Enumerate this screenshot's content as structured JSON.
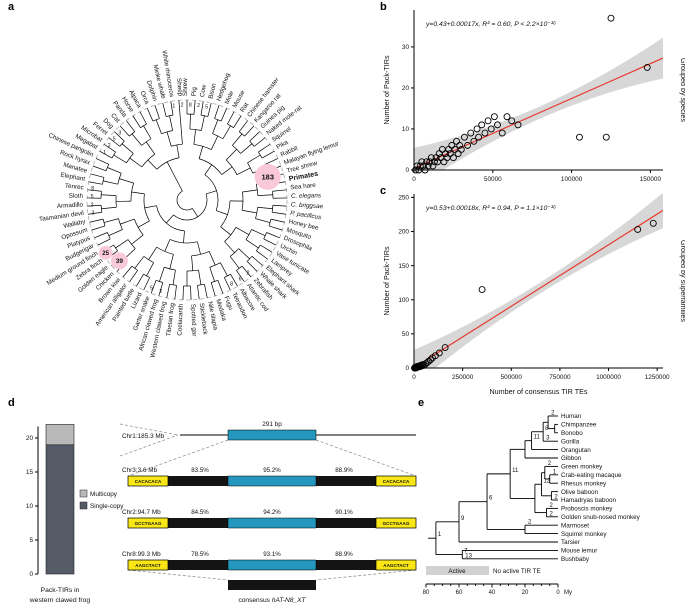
{
  "panels": {
    "a": "a",
    "b": "b",
    "c": "c",
    "d": "d",
    "e": "e"
  },
  "colors": {
    "accent_red": "#e8392e",
    "band_gray": "#d0d0d0",
    "blue_box": "#2597be",
    "yellow_box": "#f8e616",
    "badge_pink": "#f9c9d9",
    "badge_text": "#d6336c",
    "bar_dark": "#565b68",
    "bar_light": "#b9b9b9"
  },
  "panel_a": {
    "species_clockwise_from_top": [
      "Shrew",
      "Pig",
      "Cow",
      "Bison",
      "Hedgehog",
      "Mole",
      "Mouse",
      "Rat",
      "Chinese hamster",
      "Kangaroo rat",
      "Guinea pig",
      "Naked mole-rat",
      "Squirrel",
      "Pika",
      "Rabbit",
      "Malayan flying lemur",
      "Tree shrew",
      "Primates",
      "Sea hare",
      "C. elegans",
      "C. briggsae",
      "P. pacificus",
      "Honey bee",
      "Mosquito",
      "Drosophila",
      "Urchin",
      "Vase tunicate",
      "Lamprey",
      "Elephant shark",
      "Whale shark",
      "Zebrafish",
      "Atlantic cod",
      "Albacore",
      "Tetraodon",
      "Fugu",
      "Medaka",
      "Nile tilapia",
      "Stickleback",
      "Spotted gar",
      "Coelacanth",
      "Tibetan frog",
      "Western clawed frog",
      "African clawed frog",
      "Garter snake",
      "Lizard",
      "Painted turtle",
      "American alligator",
      "Brown kiwi",
      "Chicken",
      "Golden eagle",
      "Zebra finch",
      "Medium ground finch",
      "Budgerigar",
      "Platypus",
      "Opossum",
      "Wallaby",
      "Tasmanian devil",
      "Armadillo",
      "Sloth",
      "Tenrec",
      "Elephant",
      "Manatee",
      "Rock hyrax",
      "Chinese pangolin",
      "Megabat",
      "Microbat",
      "Ferret",
      "Dog",
      "Cat",
      "Panda",
      "Horse",
      "Alpaca",
      "Orca",
      "Dolphin",
      "Minke whale",
      "White rhinoceros",
      "Sheep"
    ],
    "italic_species": [
      "C. elegans",
      "C. briggsae",
      "P. pacificus"
    ],
    "badges": [
      {
        "text": "183",
        "angle": 74,
        "radius": 84,
        "r": 13,
        "font": 7.5
      },
      {
        "text": "39",
        "angle": 228,
        "radius": 91,
        "r": 8.5,
        "font": 6.5
      },
      {
        "text": "25",
        "angle": 237,
        "radius": 97,
        "r": 7,
        "font": 6
      }
    ],
    "small_numbers": [
      {
        "text": "3",
        "angle": 262
      },
      {
        "text": "2",
        "angle": 267
      },
      {
        "text": "5",
        "angle": 272
      },
      {
        "text": "8",
        "angle": 277
      },
      {
        "text": "1",
        "angle": 300
      },
      {
        "text": "2",
        "angle": 305
      },
      {
        "text": "5",
        "angle": 310
      },
      {
        "text": "3",
        "angle": 315
      },
      {
        "text": "1",
        "angle": 352
      },
      {
        "text": "2",
        "angle": 357
      },
      {
        "text": "8",
        "angle": 2
      },
      {
        "text": "2",
        "angle": 7
      },
      {
        "text": "5",
        "angle": 12
      },
      {
        "text": "2",
        "angle": 140
      },
      {
        "text": "6",
        "angle": 146
      },
      {
        "text": "8",
        "angle": 152
      },
      {
        "text": "2",
        "angle": 196
      },
      {
        "text": "5",
        "angle": 202
      }
    ]
  },
  "chart_data": [
    {
      "type": "scatter",
      "name": "pack_tirs_by_species",
      "equation": "y=0.43+0.00017x, R² = 0.60, P < 2.2×10⁻¹⁶",
      "ylabel": "Number of Pack-TIRs",
      "right_label": "Grouped by species",
      "xlim": [
        0,
        158000
      ],
      "ylim": [
        0,
        39
      ],
      "xticks": [
        0,
        50000,
        100000,
        150000
      ],
      "yticks": [
        0,
        10,
        20,
        30
      ],
      "fit": {
        "intercept": 0.43,
        "slope": 0.00017
      },
      "band": {
        "center": 1.5,
        "edge": 5
      },
      "points": [
        [
          1000,
          0
        ],
        [
          2000,
          1
        ],
        [
          3000,
          0
        ],
        [
          4000,
          1
        ],
        [
          5000,
          2
        ],
        [
          6000,
          1
        ],
        [
          7000,
          0
        ],
        [
          8000,
          2
        ],
        [
          9000,
          1
        ],
        [
          10000,
          2
        ],
        [
          11000,
          3
        ],
        [
          12000,
          1
        ],
        [
          13000,
          2
        ],
        [
          14000,
          3
        ],
        [
          15000,
          2
        ],
        [
          16000,
          4
        ],
        [
          17000,
          3
        ],
        [
          18000,
          5
        ],
        [
          19000,
          2
        ],
        [
          20000,
          4
        ],
        [
          21000,
          3
        ],
        [
          22000,
          5
        ],
        [
          23000,
          4
        ],
        [
          24000,
          6
        ],
        [
          25000,
          3
        ],
        [
          26000,
          5
        ],
        [
          27000,
          7
        ],
        [
          28000,
          4
        ],
        [
          29000,
          6
        ],
        [
          30000,
          5
        ],
        [
          32000,
          8
        ],
        [
          34000,
          6
        ],
        [
          36000,
          9
        ],
        [
          38000,
          7
        ],
        [
          40000,
          10
        ],
        [
          41000,
          8
        ],
        [
          43000,
          11
        ],
        [
          45000,
          9
        ],
        [
          47000,
          12
        ],
        [
          49000,
          10
        ],
        [
          51000,
          13
        ],
        [
          53000,
          11
        ],
        [
          56000,
          9
        ],
        [
          59000,
          13
        ],
        [
          62000,
          12
        ],
        [
          66000,
          11
        ],
        [
          105000,
          8
        ],
        [
          122000,
          8
        ],
        [
          125000,
          37
        ],
        [
          148000,
          25
        ]
      ]
    },
    {
      "type": "scatter",
      "name": "pack_tirs_by_superfamilies",
      "equation": "y=0.53+0.00018x, R² = 0.94, P = 1.1×10⁻¹⁶",
      "ylabel": "Number of Pack-TIRs",
      "xlabel": "Number of consensus TIR TEs",
      "right_label": "Grouped by superfamilies",
      "xlim": [
        0,
        1280000
      ],
      "ylim": [
        0,
        255
      ],
      "xticks": [
        0,
        250000,
        500000,
        750000,
        1000000,
        1250000
      ],
      "yticks": [
        0,
        50,
        100,
        150,
        200,
        250
      ],
      "fit": {
        "intercept": 0.53,
        "slope": 0.00018
      },
      "band": {
        "center": 8,
        "edge": 26
      },
      "points": [
        [
          3000,
          0
        ],
        [
          6000,
          1
        ],
        [
          9000,
          0
        ],
        [
          12000,
          1
        ],
        [
          15000,
          2
        ],
        [
          18000,
          1
        ],
        [
          22000,
          2
        ],
        [
          26000,
          3
        ],
        [
          30000,
          2
        ],
        [
          35000,
          4
        ],
        [
          40000,
          3
        ],
        [
          45000,
          5
        ],
        [
          52000,
          4
        ],
        [
          60000,
          6
        ],
        [
          68000,
          8
        ],
        [
          76000,
          10
        ],
        [
          85000,
          12
        ],
        [
          95000,
          15
        ],
        [
          110000,
          18
        ],
        [
          130000,
          22
        ],
        [
          160000,
          30
        ],
        [
          350000,
          115
        ],
        [
          1150000,
          203
        ],
        [
          1230000,
          212
        ]
      ]
    },
    {
      "type": "bar",
      "name": "pack_tirs_western_clawed_frog",
      "yticks": [
        0,
        5,
        10,
        15,
        20
      ],
      "ymax": 22,
      "segments": [
        {
          "label": "Single-copy",
          "value": 19,
          "color": "#565b68"
        },
        {
          "label": "Multicopy",
          "value": 3,
          "color": "#b9b9b9"
        }
      ],
      "legend": [
        {
          "label": "Multicopy",
          "color": "#b9b9b9"
        },
        {
          "label": "Single-copy",
          "color": "#565b68"
        }
      ],
      "xlabel": [
        "Pack-TIRs in",
        "western clawed frog"
      ]
    }
  ],
  "panel_d_genes": {
    "rows": [
      {
        "chr": "Chr1:185.3 Mb",
        "type": "insert",
        "label": "291 bp"
      },
      {
        "chr": "Chr3:3.6 Mb",
        "pcts": [
          "83.5%",
          "95.2%",
          "88.9%"
        ],
        "tir": "CACACACA"
      },
      {
        "chr": "Chr2:94.7 Mb",
        "pcts": [
          "84.5%",
          "94.2%",
          "90.1%"
        ],
        "tir": "GCCTGAAG"
      },
      {
        "chr": "Chr8:99.3 Mb",
        "pcts": [
          "78.5%",
          "93.1%",
          "88.9%"
        ],
        "tir": "AAGCTACT"
      }
    ],
    "consensus_prefix": "consensus ",
    "consensus_name": "hAT-N8_XT"
  },
  "panel_e": {
    "tips": [
      {
        "name": "Human",
        "n": "2"
      },
      {
        "name": "Chimpanzee",
        "n": ""
      },
      {
        "name": "Bonobo",
        "n": ""
      },
      {
        "name": "Gorilla",
        "n": "3"
      },
      {
        "name": "Orangutan",
        "n": ""
      },
      {
        "name": "Gibbon",
        "n": ""
      },
      {
        "name": "Green monkey",
        "n": "2"
      },
      {
        "name": "Crab-eating macaque",
        "n": "1"
      },
      {
        "name": "Rhesus monkey",
        "n": ""
      },
      {
        "name": "Olive baboon",
        "n": ""
      },
      {
        "name": "Hamadryas baboon",
        "n": "2"
      },
      {
        "name": "Proboscis monkey",
        "n": "2"
      },
      {
        "name": "Golden snub-nosed monkey",
        "n": "2"
      },
      {
        "name": "Marmoset",
        "n": "2"
      },
      {
        "name": "Squirrel monkey",
        "n": ""
      },
      {
        "name": "Tarsier",
        "n": ""
      },
      {
        "name": "Mouse lemur",
        "n": ""
      },
      {
        "name": "Bushbaby",
        "n": "13"
      }
    ],
    "node_labels": [
      {
        "node": 20,
        "label": "8"
      },
      {
        "node": 21,
        "label": "11"
      },
      {
        "node": 26,
        "label": "12"
      },
      {
        "node": 29,
        "label": "11"
      },
      {
        "node": 31,
        "label": "6"
      },
      {
        "node": 32,
        "label": "9"
      },
      {
        "node": 33,
        "label": "7"
      },
      {
        "node": 34,
        "label": "1"
      }
    ],
    "axis": {
      "ticks": [
        80,
        60,
        40,
        20,
        0
      ],
      "unit": "My"
    },
    "legend": {
      "active": "Active",
      "inactive": "No active TIR TE"
    }
  }
}
